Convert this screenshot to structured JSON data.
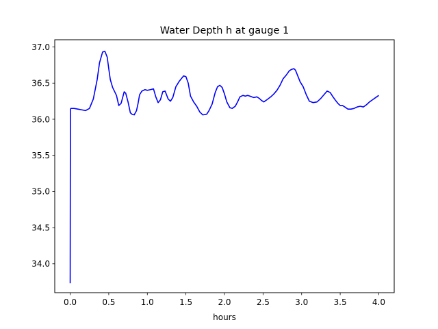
{
  "chart_data": {
    "type": "line",
    "title": "Water Depth h at gauge 1",
    "xlabel": "hours",
    "ylabel": "",
    "xlim": [
      -0.2,
      4.2
    ],
    "ylim": [
      33.6,
      37.1
    ],
    "xticks": [
      0.0,
      0.5,
      1.0,
      1.5,
      2.0,
      2.5,
      3.0,
      3.5,
      4.0
    ],
    "xtick_labels": [
      "0.0",
      "0.5",
      "1.0",
      "1.5",
      "2.0",
      "2.5",
      "3.0",
      "3.5",
      "4.0"
    ],
    "yticks": [
      34.0,
      34.5,
      35.0,
      35.5,
      36.0,
      36.5,
      37.0
    ],
    "ytick_labels": [
      "34.0",
      "34.5",
      "35.0",
      "35.5",
      "36.0",
      "36.5",
      "37.0"
    ],
    "grid": false,
    "legend": "none",
    "series": [
      {
        "color": "#0000ff",
        "x": [
          0.0,
          0.003,
          0.01,
          0.05,
          0.1,
          0.15,
          0.2,
          0.25,
          0.3,
          0.35,
          0.38,
          0.42,
          0.45,
          0.48,
          0.5,
          0.52,
          0.55,
          0.6,
          0.63,
          0.66,
          0.7,
          0.72,
          0.75,
          0.78,
          0.8,
          0.83,
          0.86,
          0.88,
          0.9,
          0.93,
          0.97,
          1.0,
          1.04,
          1.08,
          1.11,
          1.14,
          1.17,
          1.2,
          1.23,
          1.27,
          1.3,
          1.33,
          1.37,
          1.41,
          1.44,
          1.47,
          1.5,
          1.53,
          1.56,
          1.6,
          1.64,
          1.68,
          1.72,
          1.77,
          1.8,
          1.84,
          1.88,
          1.91,
          1.94,
          1.97,
          2.0,
          2.03,
          2.07,
          2.1,
          2.14,
          2.17,
          2.2,
          2.24,
          2.27,
          2.3,
          2.33,
          2.38,
          2.42,
          2.45,
          2.48,
          2.51,
          2.55,
          2.6,
          2.64,
          2.68,
          2.72,
          2.76,
          2.8,
          2.84,
          2.87,
          2.9,
          2.92,
          2.95,
          2.98,
          3.02,
          3.06,
          3.1,
          3.15,
          3.2,
          3.25,
          3.29,
          3.33,
          3.37,
          3.4,
          3.44,
          3.47,
          3.5,
          3.53,
          3.56,
          3.6,
          3.64,
          3.68,
          3.72,
          3.76,
          3.8,
          3.84,
          3.88,
          3.92,
          3.96,
          4.0
        ],
        "values": [
          33.73,
          36.14,
          36.15,
          36.15,
          36.14,
          36.13,
          36.12,
          36.15,
          36.28,
          36.55,
          36.78,
          36.93,
          36.94,
          36.86,
          36.7,
          36.55,
          36.44,
          36.33,
          36.19,
          36.22,
          36.38,
          36.36,
          36.24,
          36.09,
          36.07,
          36.06,
          36.12,
          36.22,
          36.34,
          36.39,
          36.41,
          36.4,
          36.41,
          36.42,
          36.31,
          36.23,
          36.27,
          36.38,
          36.39,
          36.28,
          36.25,
          36.3,
          36.45,
          36.52,
          36.56,
          36.6,
          36.59,
          36.5,
          36.32,
          36.24,
          36.18,
          36.1,
          36.06,
          36.07,
          36.12,
          36.21,
          36.37,
          36.45,
          36.47,
          36.44,
          36.35,
          36.24,
          36.16,
          36.15,
          36.18,
          36.24,
          36.31,
          36.33,
          36.32,
          36.33,
          36.32,
          36.3,
          36.31,
          36.29,
          36.26,
          36.24,
          36.27,
          36.31,
          36.35,
          36.4,
          36.47,
          36.56,
          36.61,
          36.67,
          36.69,
          36.7,
          36.68,
          36.6,
          36.52,
          36.45,
          36.34,
          36.25,
          36.23,
          36.24,
          36.29,
          36.34,
          36.39,
          36.37,
          36.32,
          36.26,
          36.22,
          36.19,
          36.19,
          36.17,
          36.14,
          36.14,
          36.15,
          36.17,
          36.18,
          36.17,
          36.2,
          36.24,
          36.27,
          36.3,
          36.33
        ]
      }
    ]
  }
}
